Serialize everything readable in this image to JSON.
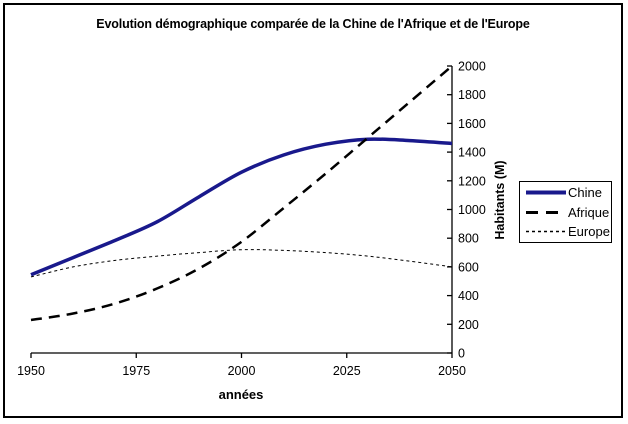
{
  "chart_data": {
    "type": "line",
    "title": "Evolution démographique comparée de la Chine de l'Afrique et de l'Europe",
    "xlabel": "années",
    "ylabel": "Habitants (M)",
    "x": [
      1950,
      1960,
      1970,
      1980,
      1990,
      2000,
      2010,
      2020,
      2030,
      2040,
      2050
    ],
    "series": [
      {
        "name": "Chine",
        "color": "#19198c",
        "style": "solid",
        "width": 3.5,
        "values": [
          545,
          665,
          785,
          915,
          1090,
          1260,
          1380,
          1455,
          1490,
          1480,
          1460
        ]
      },
      {
        "name": "Afrique",
        "color": "#000000",
        "style": "dashed",
        "width": 2.5,
        "values": [
          230,
          275,
          345,
          450,
          590,
          775,
          1010,
          1250,
          1500,
          1750,
          2000
        ]
      },
      {
        "name": "Europe",
        "color": "#000000",
        "style": "dotted",
        "width": 1,
        "values": [
          530,
          600,
          645,
          675,
          700,
          720,
          715,
          700,
          675,
          640,
          600
        ]
      }
    ],
    "xticks": [
      1950,
      1975,
      2000,
      2025,
      2050
    ],
    "yticks": [
      0,
      200,
      400,
      600,
      800,
      1000,
      1200,
      1400,
      1600,
      1800,
      2000
    ],
    "xlim": [
      1950,
      2050
    ],
    "ylim": [
      0,
      2000
    ],
    "grid": false,
    "legend_position": "right",
    "axis_color": "#000000",
    "background_color": "#ffffff"
  }
}
